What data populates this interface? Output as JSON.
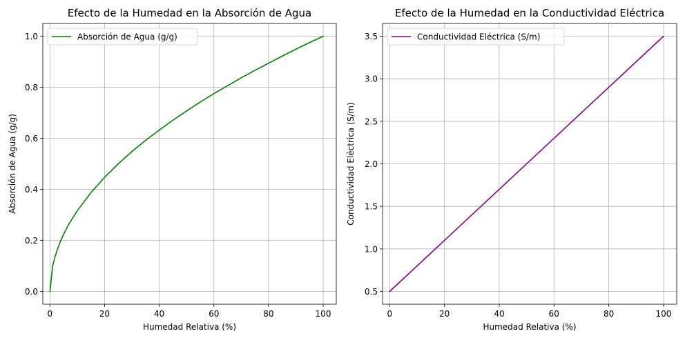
{
  "chart_data": [
    {
      "type": "line",
      "title": "Efecto de la Humedad en la Absorción de Agua",
      "xlabel": "Humedad Relativa (%)",
      "ylabel": "Absorción de Agua (g/g)",
      "xlim": [
        -2.6,
        104.8
      ],
      "ylim": [
        -0.05,
        1.05
      ],
      "xticks": [
        0,
        20,
        40,
        60,
        80,
        100
      ],
      "xtick_labels": [
        "0",
        "20",
        "40",
        "60",
        "80",
        "100"
      ],
      "yticks": [
        0.0,
        0.2,
        0.4,
        0.6,
        0.8,
        1.0
      ],
      "ytick_labels": [
        "0.0",
        "0.2",
        "0.4",
        "0.6",
        "0.8",
        "1.0"
      ],
      "grid": true,
      "legend_position": "upper-left",
      "series": [
        {
          "name": "Absorción de Agua (g/g)",
          "color": "#008000",
          "x": [
            0,
            1,
            2,
            3,
            4,
            5,
            7,
            10,
            15,
            20,
            25,
            30,
            35,
            40,
            45,
            50,
            55,
            60,
            65,
            70,
            75,
            80,
            85,
            90,
            95,
            100
          ],
          "y": [
            0.0,
            0.1,
            0.141,
            0.173,
            0.2,
            0.224,
            0.265,
            0.316,
            0.387,
            0.447,
            0.5,
            0.548,
            0.592,
            0.632,
            0.671,
            0.707,
            0.742,
            0.775,
            0.806,
            0.837,
            0.866,
            0.894,
            0.922,
            0.949,
            0.975,
            1.0
          ]
        }
      ]
    },
    {
      "type": "line",
      "title": "Efecto de la Humedad en la Conductividad Eléctrica",
      "xlabel": "Humedad Relativa (%)",
      "ylabel": "Conductividad Eléctrica (S/m)",
      "xlim": [
        -2.6,
        104.8
      ],
      "ylim": [
        0.35,
        3.65
      ],
      "xticks": [
        0,
        20,
        40,
        60,
        80,
        100
      ],
      "xtick_labels": [
        "0",
        "20",
        "40",
        "60",
        "80",
        "100"
      ],
      "yticks": [
        0.5,
        1.0,
        1.5,
        2.0,
        2.5,
        3.0,
        3.5
      ],
      "ytick_labels": [
        "0.5",
        "1.0",
        "1.5",
        "2.0",
        "2.5",
        "3.0",
        "3.5"
      ],
      "grid": true,
      "legend_position": "upper-left",
      "series": [
        {
          "name": "Conductividad Eléctrica (S/m)",
          "color": "#800080",
          "x": [
            0,
            100
          ],
          "y": [
            0.5,
            3.5
          ]
        }
      ]
    }
  ]
}
